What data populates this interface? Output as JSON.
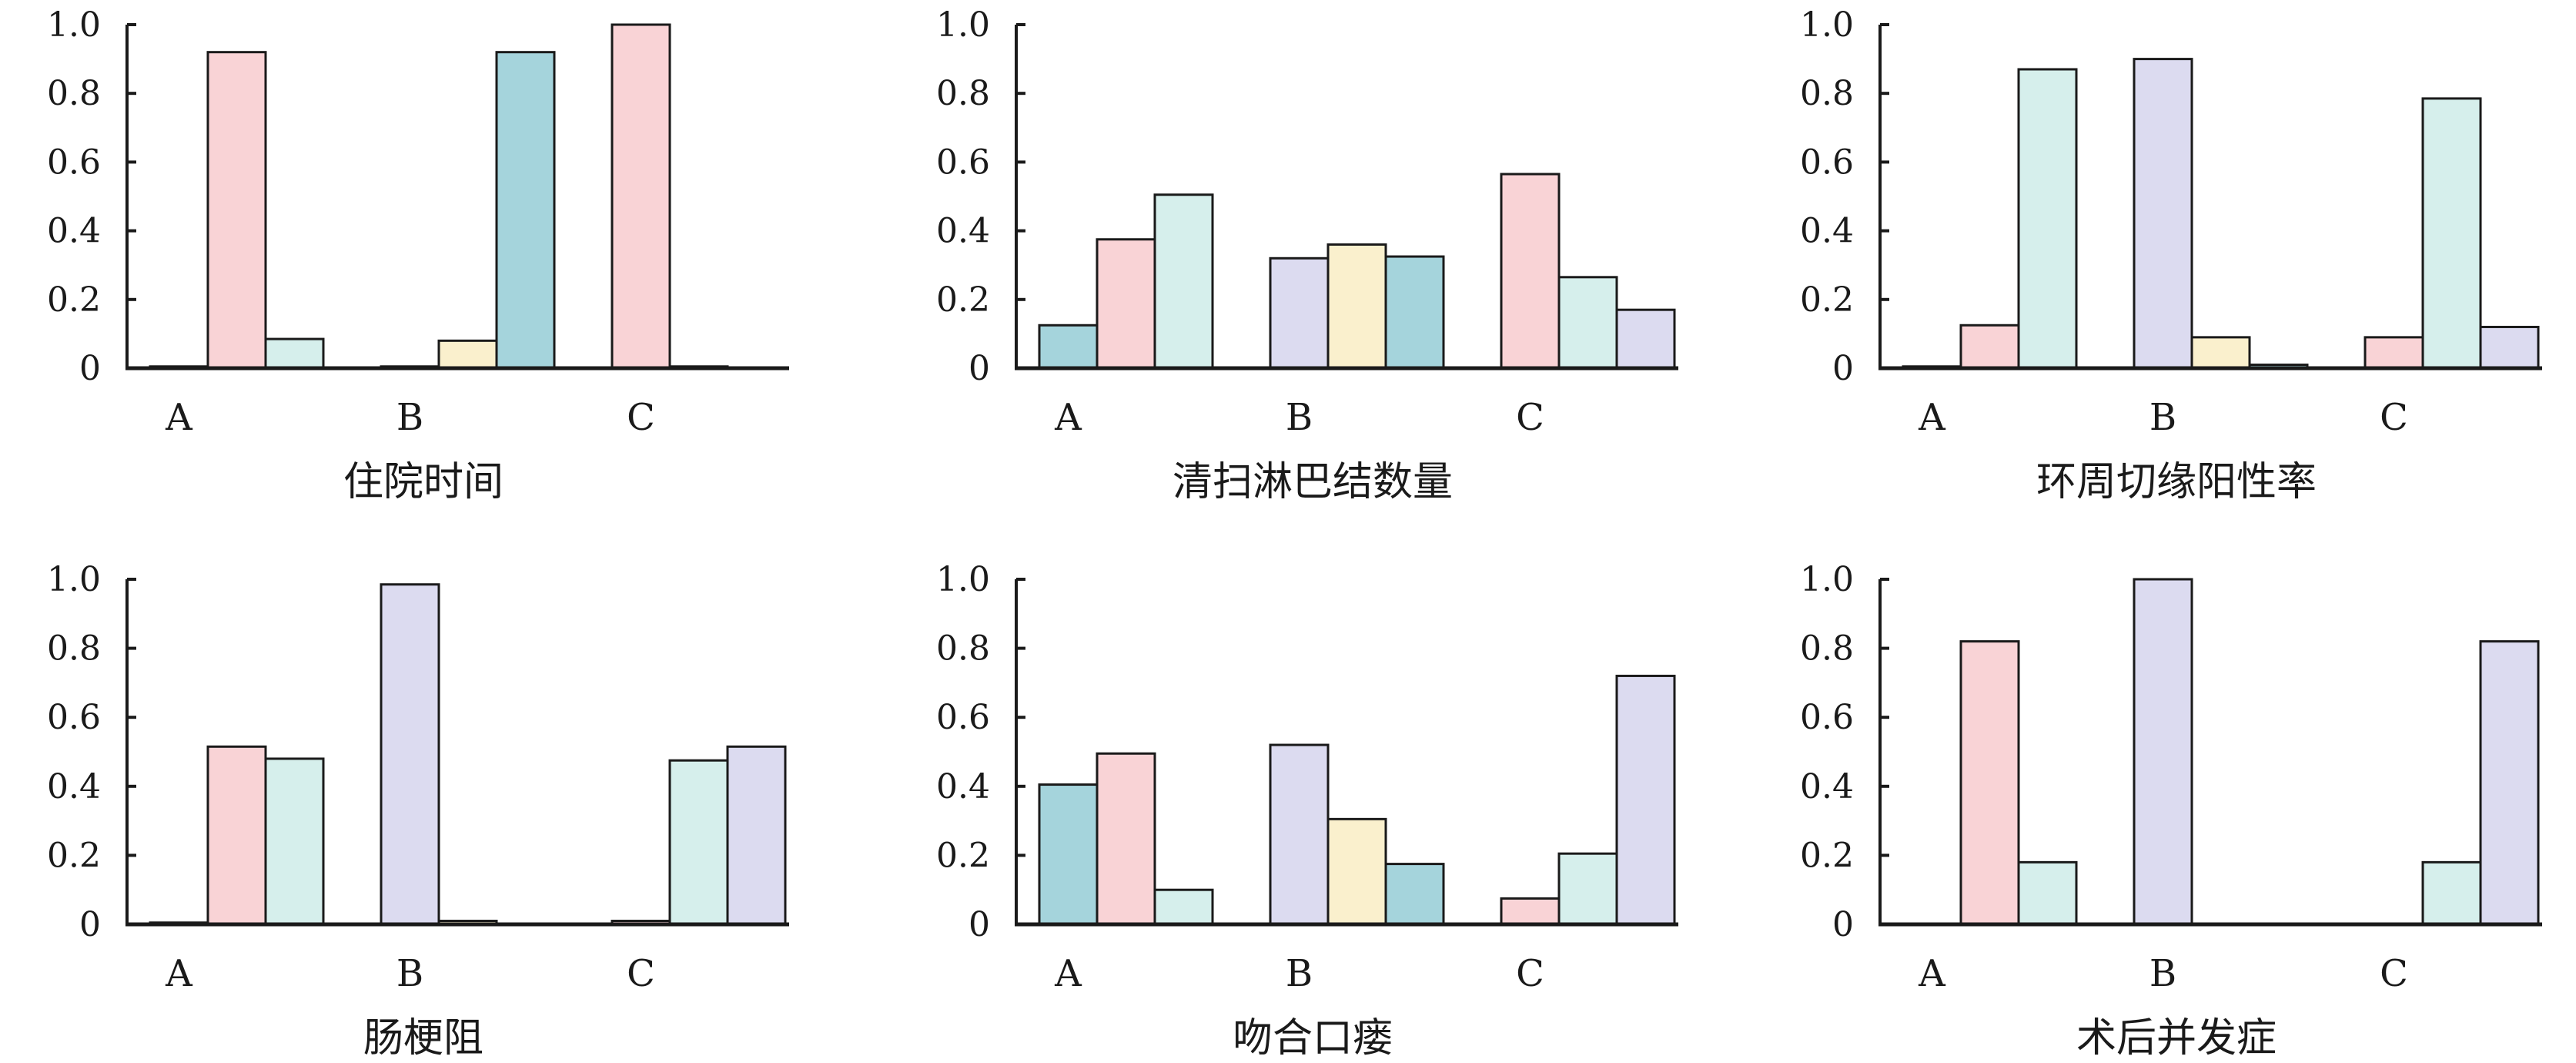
{
  "colors": {
    "pink": "#f9d3d6",
    "mint": "#d6efec",
    "teal": "#a5d4dc",
    "lavender": "#dcdbf0",
    "yellow": "#faf0cd",
    "axis": "#1a1a1a",
    "bar_outline": "#1a1a1a"
  },
  "chart_data": [
    {
      "type": "bar",
      "title": "住院时间",
      "categories": [
        "A",
        "B",
        "C"
      ],
      "bars": [
        [
          {
            "value": 0.005,
            "color": "teal"
          },
          {
            "value": 0.92,
            "color": "pink"
          },
          {
            "value": 0.085,
            "color": "mint"
          }
        ],
        [
          {
            "value": 0.005,
            "color": "lavender"
          },
          {
            "value": 0.08,
            "color": "yellow"
          },
          {
            "value": 0.92,
            "color": "teal"
          }
        ],
        [
          {
            "value": 1.0,
            "color": "pink"
          },
          {
            "value": 0.005,
            "color": "mint"
          },
          {
            "value": 0.0,
            "color": "lavender"
          }
        ]
      ],
      "yticks": [
        "0",
        "0.2",
        "0.4",
        "0.6",
        "0.8",
        "1.0"
      ],
      "ylim": [
        0,
        1.0
      ]
    },
    {
      "type": "bar",
      "title": "清扫淋巴结数量",
      "categories": [
        "A",
        "B",
        "C"
      ],
      "bars": [
        [
          {
            "value": 0.125,
            "color": "teal"
          },
          {
            "value": 0.375,
            "color": "pink"
          },
          {
            "value": 0.505,
            "color": "mint"
          }
        ],
        [
          {
            "value": 0.32,
            "color": "lavender"
          },
          {
            "value": 0.36,
            "color": "yellow"
          },
          {
            "value": 0.325,
            "color": "teal"
          }
        ],
        [
          {
            "value": 0.565,
            "color": "pink"
          },
          {
            "value": 0.265,
            "color": "mint"
          },
          {
            "value": 0.17,
            "color": "lavender"
          }
        ]
      ],
      "yticks": [
        "0",
        "0.2",
        "0.4",
        "0.6",
        "0.8",
        "1.0"
      ],
      "ylim": [
        0,
        1.0
      ]
    },
    {
      "type": "bar",
      "title": "环周切缘阳性率",
      "categories": [
        "A",
        "B",
        "C"
      ],
      "bars": [
        [
          {
            "value": 0.005,
            "color": "teal"
          },
          {
            "value": 0.125,
            "color": "pink"
          },
          {
            "value": 0.87,
            "color": "mint"
          }
        ],
        [
          {
            "value": 0.9,
            "color": "lavender"
          },
          {
            "value": 0.09,
            "color": "yellow"
          },
          {
            "value": 0.01,
            "color": "teal"
          }
        ],
        [
          {
            "value": 0.09,
            "color": "pink"
          },
          {
            "value": 0.785,
            "color": "mint"
          },
          {
            "value": 0.12,
            "color": "lavender"
          }
        ]
      ],
      "yticks": [
        "0",
        "0.2",
        "0.4",
        "0.6",
        "0.8",
        "1.0"
      ],
      "ylim": [
        0,
        1.0
      ]
    },
    {
      "type": "bar",
      "title": "肠梗阻",
      "categories": [
        "A",
        "B",
        "C"
      ],
      "bars": [
        [
          {
            "value": 0.005,
            "color": "teal"
          },
          {
            "value": 0.515,
            "color": "pink"
          },
          {
            "value": 0.48,
            "color": "mint"
          }
        ],
        [
          {
            "value": 0.985,
            "color": "lavender"
          },
          {
            "value": 0.01,
            "color": "yellow"
          },
          {
            "value": 0.0,
            "color": "teal"
          }
        ],
        [
          {
            "value": 0.01,
            "color": "pink"
          },
          {
            "value": 0.475,
            "color": "mint"
          },
          {
            "value": 0.515,
            "color": "lavender"
          }
        ]
      ],
      "yticks": [
        "0",
        "0.2",
        "0.4",
        "0.6",
        "0.8",
        "1.0"
      ],
      "ylim": [
        0,
        1.0
      ]
    },
    {
      "type": "bar",
      "title": "吻合口瘘",
      "categories": [
        "A",
        "B",
        "C"
      ],
      "bars": [
        [
          {
            "value": 0.405,
            "color": "teal"
          },
          {
            "value": 0.495,
            "color": "pink"
          },
          {
            "value": 0.1,
            "color": "mint"
          }
        ],
        [
          {
            "value": 0.52,
            "color": "lavender"
          },
          {
            "value": 0.305,
            "color": "yellow"
          },
          {
            "value": 0.175,
            "color": "teal"
          }
        ],
        [
          {
            "value": 0.075,
            "color": "pink"
          },
          {
            "value": 0.205,
            "color": "mint"
          },
          {
            "value": 0.72,
            "color": "lavender"
          }
        ]
      ],
      "yticks": [
        "0",
        "0.2",
        "0.4",
        "0.6",
        "0.8",
        "1.0"
      ],
      "ylim": [
        0,
        1.0
      ]
    },
    {
      "type": "bar",
      "title": "术后并发症",
      "categories": [
        "A",
        "B",
        "C"
      ],
      "bars": [
        [
          {
            "value": 0.0,
            "color": "teal"
          },
          {
            "value": 0.82,
            "color": "pink"
          },
          {
            "value": 0.18,
            "color": "mint"
          }
        ],
        [
          {
            "value": 1.0,
            "color": "lavender"
          },
          {
            "value": 0.0,
            "color": "yellow"
          },
          {
            "value": 0.0,
            "color": "teal"
          }
        ],
        [
          {
            "value": 0.0,
            "color": "pink"
          },
          {
            "value": 0.18,
            "color": "mint"
          },
          {
            "value": 0.82,
            "color": "lavender"
          }
        ]
      ],
      "yticks": [
        "0",
        "0.2",
        "0.4",
        "0.6",
        "0.8",
        "1.0"
      ],
      "ylim": [
        0,
        1.0
      ]
    }
  ]
}
